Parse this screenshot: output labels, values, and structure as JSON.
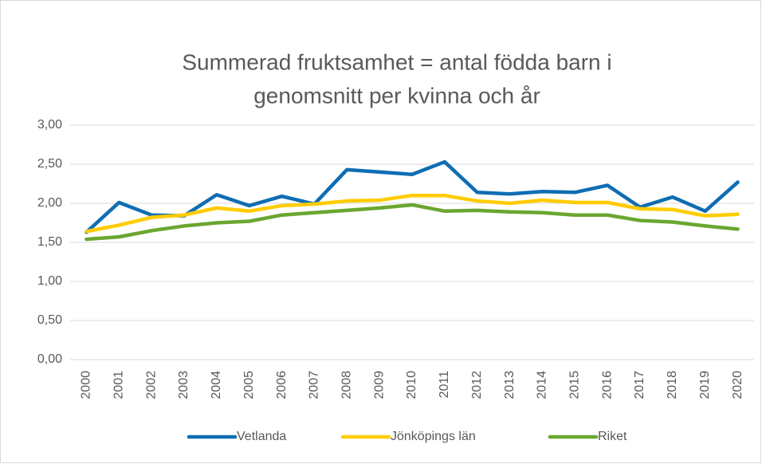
{
  "chart_data": {
    "type": "line",
    "title": [
      "Summerad fruktsamhet = antal födda barn i",
      "genomsnitt per kvinna och år"
    ],
    "categories": [
      "2000",
      "2001",
      "2002",
      "2003",
      "2004",
      "2005",
      "2006",
      "2007",
      "2008",
      "2009",
      "2010",
      "2011",
      "2012",
      "2013",
      "2014",
      "2015",
      "2016",
      "2017",
      "2018",
      "2019",
      "2020"
    ],
    "series": [
      {
        "name": "Vetlanda",
        "color": "#0f6db3",
        "values": [
          1.63,
          2.01,
          1.85,
          1.84,
          2.11,
          1.97,
          2.09,
          1.99,
          2.43,
          2.4,
          2.37,
          2.53,
          2.14,
          2.12,
          2.15,
          2.14,
          2.23,
          1.95,
          2.08,
          1.9,
          2.27
        ]
      },
      {
        "name": "Jönköpings län",
        "color": "#ffcc00",
        "values": [
          1.64,
          1.72,
          1.82,
          1.85,
          1.94,
          1.9,
          1.97,
          1.99,
          2.03,
          2.04,
          2.1,
          2.1,
          2.03,
          2.0,
          2.04,
          2.01,
          2.01,
          1.93,
          1.92,
          1.84,
          1.86
        ]
      },
      {
        "name": "Riket",
        "color": "#6aa630",
        "values": [
          1.54,
          1.57,
          1.65,
          1.71,
          1.75,
          1.77,
          1.85,
          1.88,
          1.91,
          1.94,
          1.98,
          1.9,
          1.91,
          1.89,
          1.88,
          1.85,
          1.85,
          1.78,
          1.76,
          1.71,
          1.67
        ]
      }
    ],
    "ylim": [
      0,
      3
    ],
    "yticks": [
      {
        "value": 0,
        "label": "0,00"
      },
      {
        "value": 0.5,
        "label": "0,50"
      },
      {
        "value": 1,
        "label": "1,00"
      },
      {
        "value": 1.5,
        "label": "1,50"
      },
      {
        "value": 2,
        "label": "2,00"
      },
      {
        "value": 2.5,
        "label": "2,50"
      },
      {
        "value": 3,
        "label": "3,00"
      }
    ],
    "grid": true,
    "legend": "bottom"
  }
}
